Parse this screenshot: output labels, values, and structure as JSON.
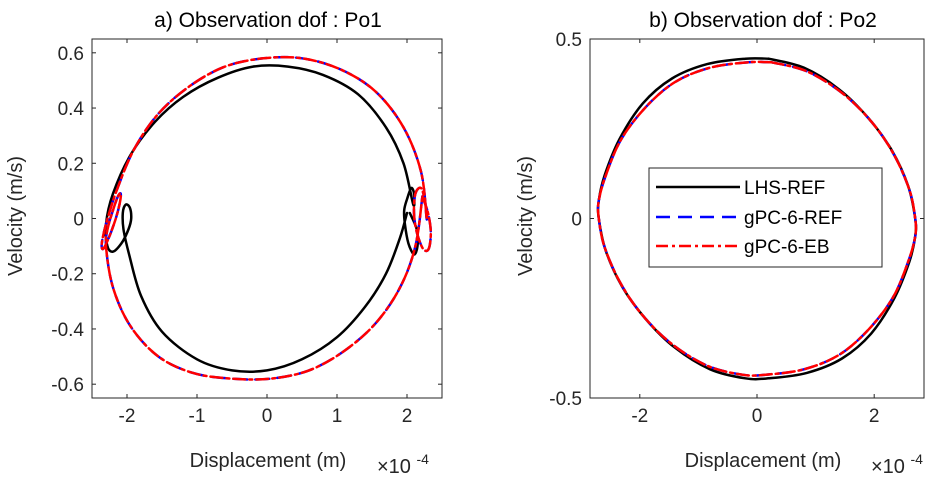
{
  "chart_data": [
    {
      "type": "line",
      "title": "a)  Observation dof : Po1",
      "xlabel": "Displacement (m)",
      "ylabel": "Velocity (m/s)",
      "x_exponent_base": "×10",
      "x_exponent_power": "-4",
      "xlim": [
        -2.5,
        2.5
      ],
      "ylim": [
        -0.65,
        0.65
      ],
      "xticks": [
        -2,
        -1,
        0,
        1,
        2
      ],
      "xtick_labels": [
        "-2",
        "-1",
        "0",
        "1",
        "2"
      ],
      "yticks": [
        -0.6,
        -0.4,
        -0.2,
        0,
        0.2,
        0.4,
        0.6
      ],
      "ytick_labels": [
        "-0.6",
        "-0.4",
        "-0.2",
        "0",
        "0.2",
        "0.4",
        "0.6"
      ],
      "grid": false,
      "series": [
        {
          "name": "LHS-REF",
          "color": "#000000",
          "dash": "solid",
          "x": [
            2.04,
            2.14,
            2.15,
            2.1,
            2.02,
            1.97,
            1.96,
            2.0,
            2.06,
            2.1,
            2.09,
            1.95,
            1.7,
            1.3,
            0.8,
            0.3,
            -0.2,
            -0.7,
            -1.2,
            -1.6,
            -1.95,
            -2.2,
            -2.3,
            -2.28,
            -2.2,
            -2.08,
            -1.98,
            -1.94,
            -1.96,
            -2.02,
            -2.06,
            -2.05,
            -1.97,
            -1.8,
            -1.5,
            -1.0,
            -0.5,
            0.0,
            0.5,
            1.0,
            1.4,
            1.7,
            1.9,
            2.0
          ],
          "y": [
            0.02,
            -0.04,
            -0.1,
            -0.13,
            -0.09,
            -0.02,
            0.03,
            0.07,
            0.11,
            0.09,
            0.05,
            0.2,
            0.33,
            0.45,
            0.52,
            0.55,
            0.55,
            0.51,
            0.44,
            0.35,
            0.23,
            0.09,
            -0.02,
            -0.1,
            -0.12,
            -0.09,
            -0.04,
            0.0,
            0.04,
            0.05,
            0.02,
            -0.04,
            -0.13,
            -0.28,
            -0.41,
            -0.51,
            -0.55,
            -0.55,
            -0.51,
            -0.43,
            -0.32,
            -0.2,
            -0.07,
            0.02
          ]
        },
        {
          "name": "gPC-6-REF",
          "color": "#0000ff",
          "dash": "dashed",
          "x": [
            2.22,
            2.3,
            2.34,
            2.31,
            2.23,
            2.14,
            2.1,
            2.12,
            2.2,
            2.26,
            2.28,
            2.2,
            1.95,
            1.55,
            1.05,
            0.5,
            -0.05,
            -0.6,
            -1.1,
            -1.55,
            -1.9,
            -2.15,
            -2.3,
            -2.36,
            -2.34,
            -2.26,
            -2.16,
            -2.1,
            -2.09,
            -2.13,
            -2.2,
            -2.27,
            -2.3,
            -2.2,
            -1.95,
            -1.55,
            -1.05,
            -0.5,
            0.05,
            0.6,
            1.1,
            1.55,
            1.9,
            2.12,
            2.22
          ],
          "y": [
            0.08,
            0.02,
            -0.05,
            -0.11,
            -0.11,
            -0.05,
            0.02,
            0.09,
            0.11,
            0.06,
            0.0,
            0.17,
            0.33,
            0.46,
            0.54,
            0.58,
            0.58,
            0.55,
            0.48,
            0.38,
            0.25,
            0.1,
            -0.02,
            -0.09,
            -0.11,
            -0.07,
            0.0,
            0.06,
            0.09,
            0.08,
            0.03,
            -0.03,
            -0.1,
            -0.25,
            -0.39,
            -0.5,
            -0.56,
            -0.58,
            -0.58,
            -0.55,
            -0.48,
            -0.38,
            -0.25,
            -0.1,
            0.08
          ]
        },
        {
          "name": "gPC-6-EB",
          "color": "#ff0000",
          "dash": "dashdot",
          "x": [
            2.22,
            2.3,
            2.34,
            2.31,
            2.23,
            2.14,
            2.1,
            2.12,
            2.2,
            2.26,
            2.28,
            2.2,
            1.95,
            1.55,
            1.05,
            0.5,
            -0.05,
            -0.6,
            -1.1,
            -1.55,
            -1.9,
            -2.15,
            -2.3,
            -2.36,
            -2.34,
            -2.26,
            -2.16,
            -2.1,
            -2.09,
            -2.13,
            -2.2,
            -2.27,
            -2.3,
            -2.2,
            -1.95,
            -1.55,
            -1.05,
            -0.5,
            0.05,
            0.6,
            1.1,
            1.55,
            1.9,
            2.12,
            2.22
          ],
          "y": [
            0.08,
            0.02,
            -0.05,
            -0.11,
            -0.11,
            -0.05,
            0.02,
            0.09,
            0.11,
            0.06,
            0.0,
            0.17,
            0.33,
            0.46,
            0.54,
            0.58,
            0.58,
            0.55,
            0.48,
            0.38,
            0.25,
            0.1,
            -0.02,
            -0.09,
            -0.11,
            -0.07,
            0.0,
            0.06,
            0.09,
            0.08,
            0.03,
            -0.03,
            -0.1,
            -0.25,
            -0.39,
            -0.5,
            -0.56,
            -0.58,
            -0.58,
            -0.55,
            -0.48,
            -0.38,
            -0.25,
            -0.1,
            0.08
          ]
        }
      ]
    },
    {
      "type": "line",
      "title": "b)  Observation dof : Po2",
      "xlabel": "Displacement (m)",
      "ylabel": "Velocity (m/s)",
      "x_exponent_base": "×10",
      "x_exponent_power": "-4",
      "xlim": [
        -2.85,
        2.85
      ],
      "ylim": [
        -0.5,
        0.5
      ],
      "xticks": [
        -2,
        0,
        2
      ],
      "xtick_labels": [
        "-2",
        "0",
        "2"
      ],
      "yticks": [
        -0.5,
        0,
        0.5
      ],
      "ytick_labels": [
        "-0.5",
        "0",
        "0.5"
      ],
      "grid": false,
      "legend": {
        "position": "center",
        "entries": [
          "LHS-REF",
          "gPC-6-REF",
          "gPC-6-EB"
        ]
      },
      "series": [
        {
          "name": "LHS-REF",
          "color": "#000000",
          "dash": "solid",
          "x": [
            0.2,
            0.8,
            1.4,
            1.9,
            2.3,
            2.58,
            2.7,
            2.7,
            2.6,
            2.35,
            1.95,
            1.45,
            0.85,
            0.2,
            -0.2,
            -0.8,
            -1.4,
            -1.9,
            -2.3,
            -2.58,
            -2.7,
            -2.7,
            -2.6,
            -2.35,
            -1.95,
            -1.45,
            -0.85,
            -0.2,
            0.2
          ],
          "y": [
            0.445,
            0.42,
            0.36,
            0.28,
            0.19,
            0.09,
            0.0,
            -0.05,
            -0.12,
            -0.22,
            -0.32,
            -0.39,
            -0.43,
            -0.445,
            -0.445,
            -0.42,
            -0.36,
            -0.28,
            -0.19,
            -0.09,
            0.0,
            0.05,
            0.12,
            0.22,
            0.32,
            0.39,
            0.43,
            0.445,
            0.445
          ]
        },
        {
          "name": "gPC-6-REF",
          "color": "#0000ff",
          "dash": "dashed",
          "x": [
            0.25,
            0.85,
            1.45,
            1.95,
            2.33,
            2.6,
            2.7,
            2.7,
            2.58,
            2.32,
            1.9,
            1.4,
            0.8,
            0.15,
            -0.25,
            -0.85,
            -1.45,
            -1.95,
            -2.33,
            -2.6,
            -2.7,
            -2.7,
            -2.58,
            -2.32,
            -1.9,
            -1.4,
            -0.8,
            -0.15,
            0.25
          ],
          "y": [
            0.435,
            0.41,
            0.35,
            0.27,
            0.18,
            0.08,
            0.0,
            -0.05,
            -0.12,
            -0.22,
            -0.31,
            -0.38,
            -0.42,
            -0.435,
            -0.435,
            -0.41,
            -0.35,
            -0.27,
            -0.18,
            -0.08,
            0.0,
            0.05,
            0.12,
            0.22,
            0.31,
            0.38,
            0.42,
            0.435,
            0.435
          ]
        },
        {
          "name": "gPC-6-EB",
          "color": "#ff0000",
          "dash": "dashdot",
          "x": [
            0.25,
            0.85,
            1.45,
            1.95,
            2.33,
            2.6,
            2.7,
            2.7,
            2.58,
            2.32,
            1.9,
            1.4,
            0.8,
            0.15,
            -0.25,
            -0.85,
            -1.45,
            -1.95,
            -2.33,
            -2.6,
            -2.7,
            -2.7,
            -2.58,
            -2.32,
            -1.9,
            -1.4,
            -0.8,
            -0.15,
            0.25
          ],
          "y": [
            0.435,
            0.41,
            0.35,
            0.27,
            0.18,
            0.08,
            0.0,
            -0.05,
            -0.12,
            -0.22,
            -0.31,
            -0.38,
            -0.42,
            -0.435,
            -0.435,
            -0.41,
            -0.35,
            -0.27,
            -0.18,
            -0.08,
            0.0,
            0.05,
            0.12,
            0.22,
            0.31,
            0.38,
            0.42,
            0.435,
            0.435
          ]
        }
      ]
    }
  ]
}
